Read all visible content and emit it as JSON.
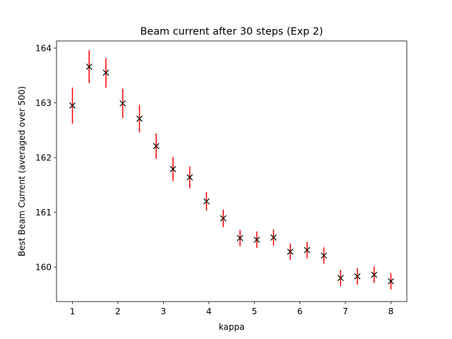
{
  "chart_data": {
    "type": "scatter",
    "title": "Beam current after 30 steps (Exp 2)",
    "xlabel": "kappa",
    "ylabel": "Best Beam Current (averaged over 500)",
    "xlim": [
      0.65,
      8.35
    ],
    "ylim": [
      159.37,
      164.13
    ],
    "xticks": [
      1,
      2,
      3,
      4,
      5,
      6,
      7,
      8
    ],
    "yticks": [
      160,
      161,
      162,
      163,
      164
    ],
    "grid": false,
    "legend": "none",
    "marker": "x",
    "marker_color": "#000000",
    "errorbar_color": "#ff0000",
    "series": [
      {
        "x": [
          1.0,
          1.368,
          1.737,
          2.105,
          2.474,
          2.842,
          3.211,
          3.579,
          3.947,
          4.316,
          4.684,
          5.053,
          5.421,
          5.789,
          6.158,
          6.526,
          6.895,
          7.263,
          7.632,
          8.0
        ],
        "y": [
          162.95,
          163.66,
          163.55,
          162.99,
          162.71,
          162.21,
          161.79,
          161.64,
          161.2,
          160.89,
          160.53,
          160.5,
          160.54,
          160.28,
          160.31,
          160.21,
          159.8,
          159.83,
          159.86,
          159.74
        ],
        "yerr": [
          0.33,
          0.3,
          0.27,
          0.27,
          0.25,
          0.23,
          0.22,
          0.2,
          0.17,
          0.16,
          0.15,
          0.15,
          0.15,
          0.15,
          0.15,
          0.15,
          0.15,
          0.15,
          0.15,
          0.15
        ]
      }
    ]
  }
}
